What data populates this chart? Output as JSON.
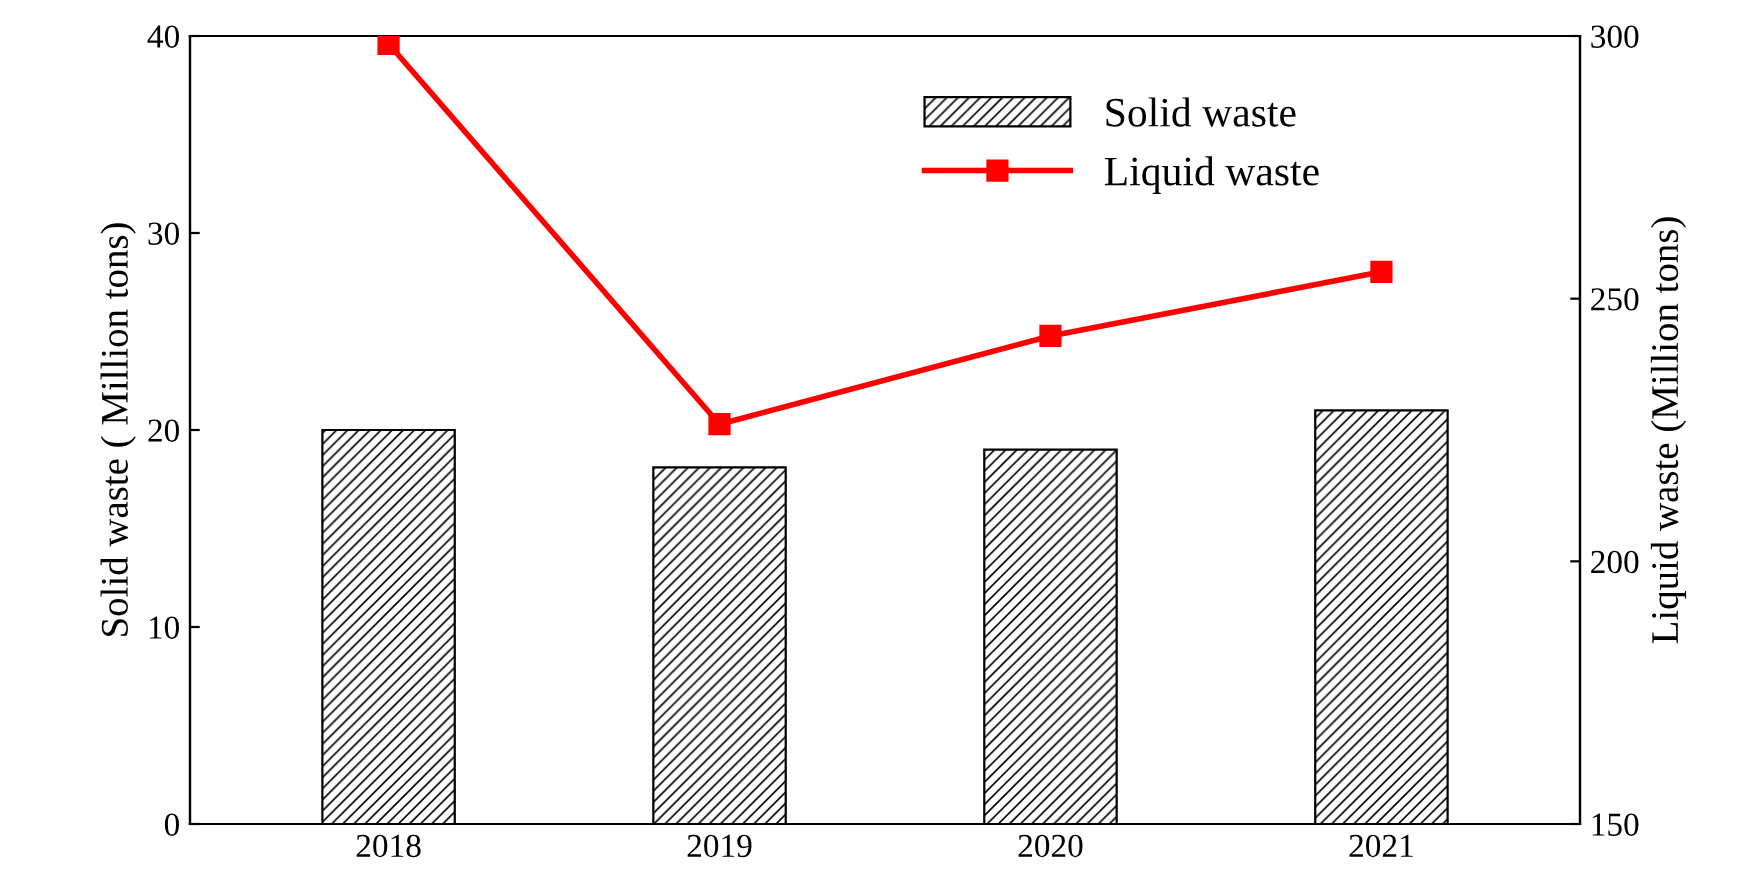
{
  "chart_data": {
    "type": "bar",
    "categories": [
      "2018",
      "2019",
      "2020",
      "2021"
    ],
    "ylabel": "Solid waste ( Million tons)",
    "y2label": "Liquid waste (Million tons)",
    "ylim": [
      0,
      40
    ],
    "yticks": [
      0,
      10,
      20,
      30,
      40
    ],
    "y2lim": [
      150,
      300
    ],
    "y2ticks": [
      150,
      200,
      250,
      300
    ],
    "legend": "top right",
    "grid": false,
    "series": [
      {
        "name": "Solid waste",
        "color": "#000000",
        "values": [
          20.0,
          18.1,
          19.0,
          21.0
        ]
      },
      {
        "name": "Liquid waste",
        "type": "line",
        "axis": "y2",
        "color": "#ff0000",
        "marker": "square",
        "line_style": "solid",
        "values": [
          298.5,
          226.1,
          242.9,
          255.1
        ]
      }
    ]
  }
}
